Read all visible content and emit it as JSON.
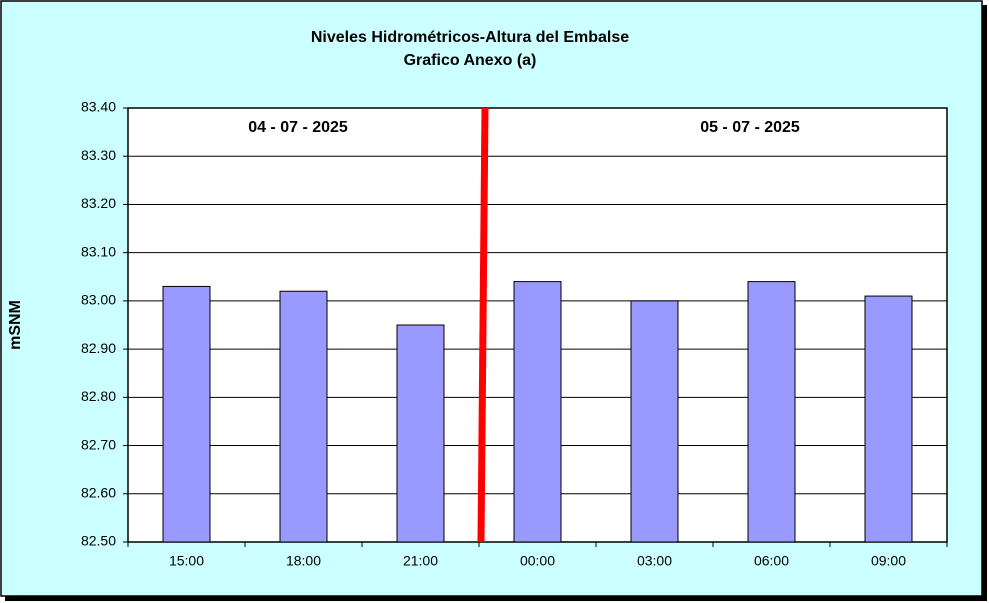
{
  "chart_data": {
    "type": "bar",
    "title": "Niveles Hidrométricos-Altura del Embalse",
    "subtitle": "Grafico Anexo (a)",
    "y_label": "mSNM",
    "annotations": [
      "04 - 07 - 2025",
      "05 - 07 - 2025"
    ],
    "categories": [
      "15:00",
      "18:00",
      "21:00",
      "00:00",
      "03:00",
      "06:00",
      "09:00"
    ],
    "values": [
      83.03,
      83.02,
      82.95,
      83.04,
      83.0,
      83.04,
      83.01
    ],
    "color": "#9999ff",
    "ylim": [
      82.5,
      83.4
    ],
    "yticks": [
      {
        "value": 82.5,
        "label": "82.50"
      },
      {
        "value": 82.6,
        "label": "82.60"
      },
      {
        "value": 82.7,
        "label": "82.70"
      },
      {
        "value": 82.8,
        "label": "82.80"
      },
      {
        "value": 82.9,
        "label": "82.90"
      },
      {
        "value": 83.0,
        "label": "83.00"
      },
      {
        "value": 83.1,
        "label": "83.10"
      },
      {
        "value": 83.2,
        "label": "83.20"
      },
      {
        "value": 83.3,
        "label": "83.30"
      },
      {
        "value": 83.4,
        "label": "83.40"
      }
    ],
    "grid": true
  }
}
